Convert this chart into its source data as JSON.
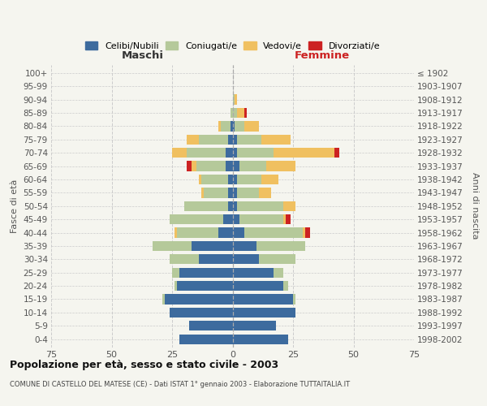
{
  "age_groups": [
    "100+",
    "95-99",
    "90-94",
    "85-89",
    "80-84",
    "75-79",
    "70-74",
    "65-69",
    "60-64",
    "55-59",
    "50-54",
    "45-49",
    "40-44",
    "35-39",
    "30-34",
    "25-29",
    "20-24",
    "15-19",
    "10-14",
    "5-9",
    "0-4"
  ],
  "birth_years": [
    "≤ 1902",
    "1903-1907",
    "1908-1912",
    "1913-1917",
    "1918-1922",
    "1923-1927",
    "1928-1932",
    "1933-1937",
    "1938-1942",
    "1943-1947",
    "1948-1952",
    "1953-1957",
    "1958-1962",
    "1963-1967",
    "1968-1972",
    "1973-1977",
    "1978-1982",
    "1983-1987",
    "1988-1992",
    "1993-1997",
    "1998-2002"
  ],
  "maschi": {
    "celibi": [
      0,
      0,
      0,
      0,
      1,
      2,
      3,
      3,
      2,
      2,
      2,
      4,
      6,
      17,
      14,
      22,
      23,
      28,
      26,
      18,
      22
    ],
    "coniugati": [
      0,
      0,
      0,
      1,
      4,
      12,
      16,
      12,
      11,
      10,
      18,
      22,
      17,
      16,
      12,
      3,
      1,
      1,
      0,
      0,
      0
    ],
    "vedovi": [
      0,
      0,
      0,
      0,
      1,
      5,
      6,
      2,
      1,
      1,
      0,
      0,
      1,
      0,
      0,
      0,
      0,
      0,
      0,
      0,
      0
    ],
    "divorziati": [
      0,
      0,
      0,
      0,
      0,
      0,
      0,
      2,
      0,
      0,
      0,
      0,
      0,
      0,
      0,
      0,
      0,
      0,
      0,
      0,
      0
    ]
  },
  "femmine": {
    "nubili": [
      0,
      0,
      0,
      0,
      1,
      2,
      2,
      3,
      2,
      2,
      2,
      3,
      5,
      10,
      11,
      17,
      21,
      25,
      26,
      18,
      23
    ],
    "coniugate": [
      0,
      0,
      1,
      2,
      4,
      10,
      15,
      11,
      10,
      9,
      19,
      18,
      24,
      20,
      15,
      4,
      2,
      1,
      0,
      0,
      0
    ],
    "vedove": [
      0,
      0,
      1,
      3,
      6,
      12,
      25,
      12,
      7,
      5,
      5,
      1,
      1,
      0,
      0,
      0,
      0,
      0,
      0,
      0,
      0
    ],
    "divorziate": [
      0,
      0,
      0,
      1,
      0,
      0,
      2,
      0,
      0,
      0,
      0,
      2,
      2,
      0,
      0,
      0,
      0,
      0,
      0,
      0,
      0
    ]
  },
  "color_celibi": "#3d6b9e",
  "color_coniugati": "#b5c99a",
  "color_vedovi": "#f0c060",
  "color_divorziati": "#cc2222",
  "bg_color": "#f5f5ef",
  "grid_color": "#cccccc",
  "title": "Popolazione per età, sesso e stato civile - 2003",
  "subtitle": "COMUNE DI CASTELLO DEL MATESE (CE) - Dati ISTAT 1° gennaio 2003 - Elaborazione TUTTAITALIA.IT",
  "label_maschi": "Maschi",
  "label_femmine": "Femmine",
  "ylabel_left": "Fasce di età",
  "ylabel_right": "Anni di nascita",
  "legend_labels": [
    "Celibi/Nubili",
    "Coniugati/e",
    "Vedovi/e",
    "Divorziati/e"
  ],
  "xlim": 75
}
